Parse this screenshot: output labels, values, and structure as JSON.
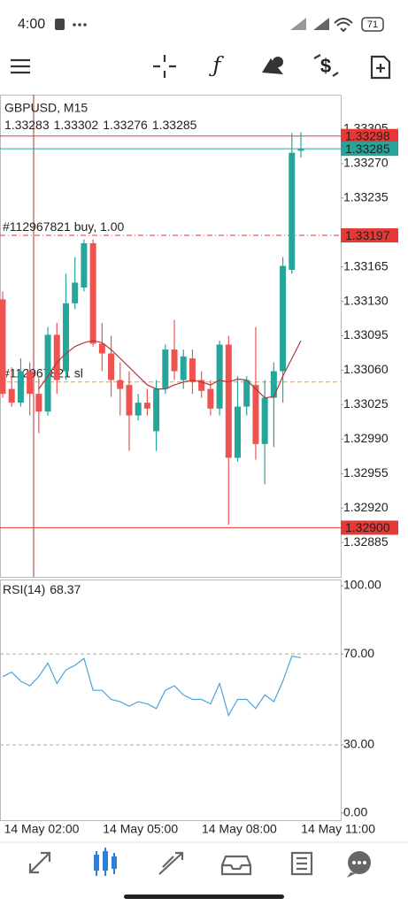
{
  "status_bar": {
    "time": "4:00",
    "battery": "71"
  },
  "chart_data": [
    {
      "type": "candlestick",
      "title": "GBPUSD, M15",
      "open": [
        1.33132,
        1.33041,
        1.33027,
        1.33059,
        1.33036,
        1.33018,
        1.33096,
        1.33059,
        1.33128,
        1.33144,
        1.33189,
        1.33087,
        1.33077,
        1.3305,
        1.33045,
        1.33014,
        1.33027,
        1.32998,
        1.33041,
        1.33081,
        1.3305,
        1.33072,
        1.3305,
        1.33041,
        1.33021,
        1.33086,
        1.32971,
        1.33023,
        1.33045,
        1.32985,
        1.33032,
        1.33059,
        1.33162,
        1.33283
      ],
      "high": [
        1.3314,
        1.33063,
        1.33072,
        1.33068,
        1.33054,
        1.33104,
        1.33108,
        1.33158,
        1.33175,
        1.33193,
        1.33193,
        1.33108,
        1.33095,
        1.33068,
        1.33059,
        1.33036,
        1.33041,
        1.3305,
        1.33086,
        1.33111,
        1.33081,
        1.33081,
        1.33059,
        1.3305,
        1.3309,
        1.33095,
        1.33054,
        1.33054,
        1.33104,
        1.3305,
        1.33068,
        1.33175,
        1.33301,
        1.33302
      ],
      "low": [
        1.33032,
        1.33023,
        1.33023,
        1.33014,
        1.32996,
        1.33014,
        1.33036,
        1.3305,
        1.33122,
        1.3314,
        1.33084,
        1.33059,
        1.33033,
        1.33014,
        1.32978,
        1.33009,
        1.33014,
        1.32978,
        1.33036,
        1.3305,
        1.33041,
        1.33036,
        1.33032,
        1.33014,
        1.33014,
        1.32903,
        1.32967,
        1.33014,
        1.32969,
        1.32944,
        1.32982,
        1.33027,
        1.33158,
        1.33276
      ],
      "close": [
        1.33036,
        1.33027,
        1.33059,
        1.33036,
        1.33018,
        1.33096,
        1.3305,
        1.33128,
        1.33149,
        1.33189,
        1.33087,
        1.33077,
        1.3305,
        1.33041,
        1.33014,
        1.33027,
        1.33021,
        1.33041,
        1.33081,
        1.33059,
        1.33074,
        1.33048,
        1.33039,
        1.33021,
        1.33086,
        1.32971,
        1.33023,
        1.3305,
        1.32985,
        1.33032,
        1.33059,
        1.33166,
        1.33281,
        1.33285
      ],
      "up_color": "#26a69a",
      "down_color": "#ef5350",
      "ma": {
        "color": "#b03a3a",
        "values": [
          null,
          null,
          null,
          null,
          1.33041,
          1.33054,
          1.33068,
          1.33077,
          1.33084,
          1.33088,
          1.3309,
          1.33088,
          1.33081,
          1.33072,
          1.33063,
          1.33054,
          1.33045,
          1.33041,
          1.33041,
          1.33045,
          1.33048,
          1.3305,
          1.33048,
          1.33045,
          1.3305,
          1.33048,
          1.33051,
          1.3305,
          1.33041,
          1.33032,
          1.33033,
          1.33054,
          1.33072,
          1.3309
        ]
      },
      "ylim": [
        1.3285,
        1.3334
      ],
      "yticks": [
        1.33305,
        {
          "value": 1.3327,
          "label": "1.33270"
        },
        1.33235,
        1.33165,
        {
          "value": 1.3313,
          "label": "1.33130"
        },
        1.33095,
        {
          "value": 1.3306,
          "label": "1.33060"
        },
        1.33025,
        {
          "value": 1.3299,
          "label": "1.32990"
        },
        1.32955,
        {
          "value": 1.3292,
          "label": "1.32920"
        },
        1.32885
      ],
      "price_lines": [
        {
          "value": 1.33298,
          "color": "#e53935",
          "tag_color": "#e53935"
        },
        {
          "value": 1.33285,
          "color": "#26a69a",
          "tag_color": "#26a69a"
        },
        {
          "value": 1.33197,
          "color": "#e53935",
          "tag_color": "#e53935",
          "style": "dashdot",
          "text": "#112967821 buy, 1.00"
        },
        {
          "value": 1.33048,
          "color": "#e8a040",
          "style": "dash",
          "text": "#112967821 sl"
        },
        {
          "value": 1.329,
          "label": "1.32900",
          "color": "#e53935",
          "tag_color": "#e53935"
        }
      ],
      "xlabels": [
        "14 May 02:00",
        "14 May 05:00",
        "14 May 08:00",
        "14 May 11:00"
      ]
    },
    {
      "type": "line",
      "title": "RSI(14)",
      "color": "#4aa3d8",
      "values": [
        60,
        62,
        58,
        56,
        60,
        66,
        57,
        63,
        65,
        68,
        54,
        54,
        50,
        49,
        47,
        49,
        48,
        46,
        54,
        56,
        52,
        50,
        50,
        48,
        57,
        43,
        50,
        50,
        46,
        52,
        49,
        58,
        69,
        68.37
      ],
      "ylim": [
        0,
        100
      ],
      "yticks": [
        {
          "value": 100,
          "label": "100.00"
        },
        {
          "value": 70,
          "label": "70.00"
        },
        {
          "value": 30,
          "label": "30.00"
        },
        {
          "value": 0,
          "label": "0.00"
        }
      ],
      "levels": [
        70,
        30
      ]
    }
  ]
}
